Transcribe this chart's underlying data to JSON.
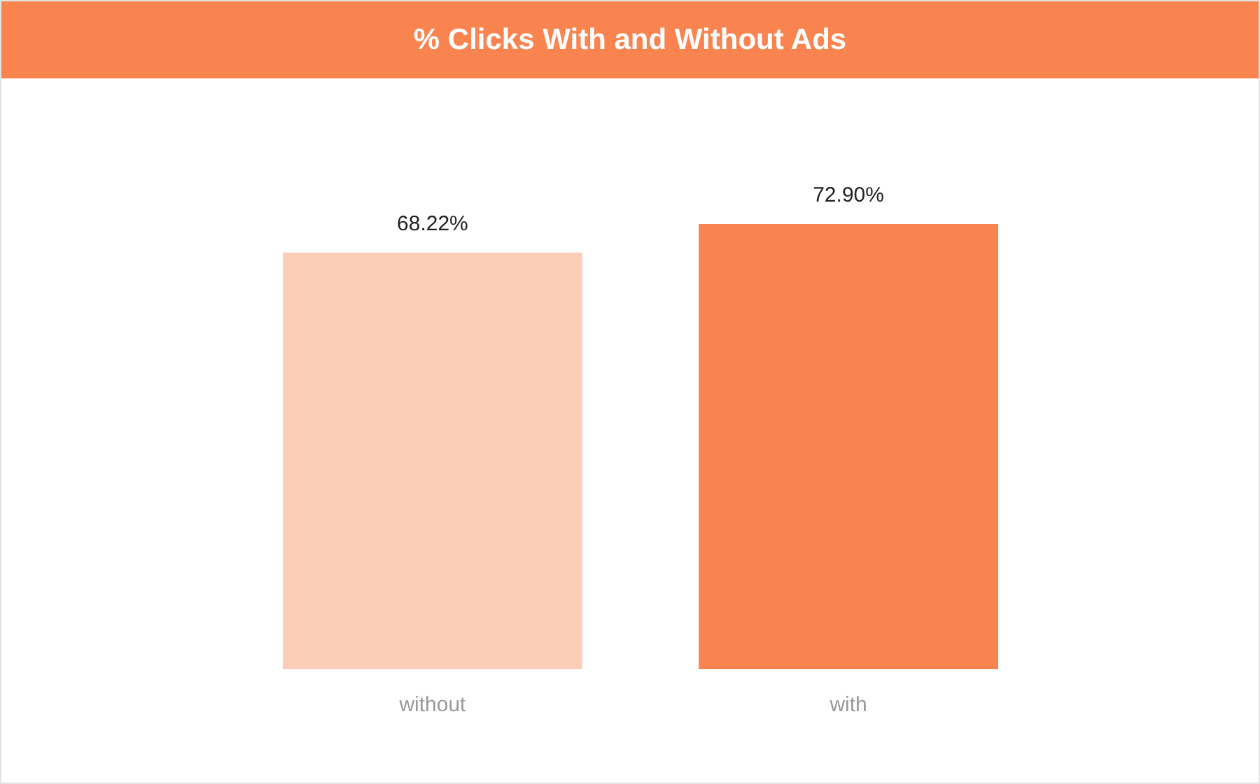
{
  "chart_data": {
    "type": "bar",
    "title": "% Clicks With and Without Ads",
    "categories": [
      "without",
      "with"
    ],
    "values": [
      68.22,
      72.9
    ],
    "colors": [
      "#fccdb7",
      "#fa844f"
    ],
    "value_labels": [
      "68.22%",
      "72.90%"
    ],
    "tick_labels": "x"
  }
}
